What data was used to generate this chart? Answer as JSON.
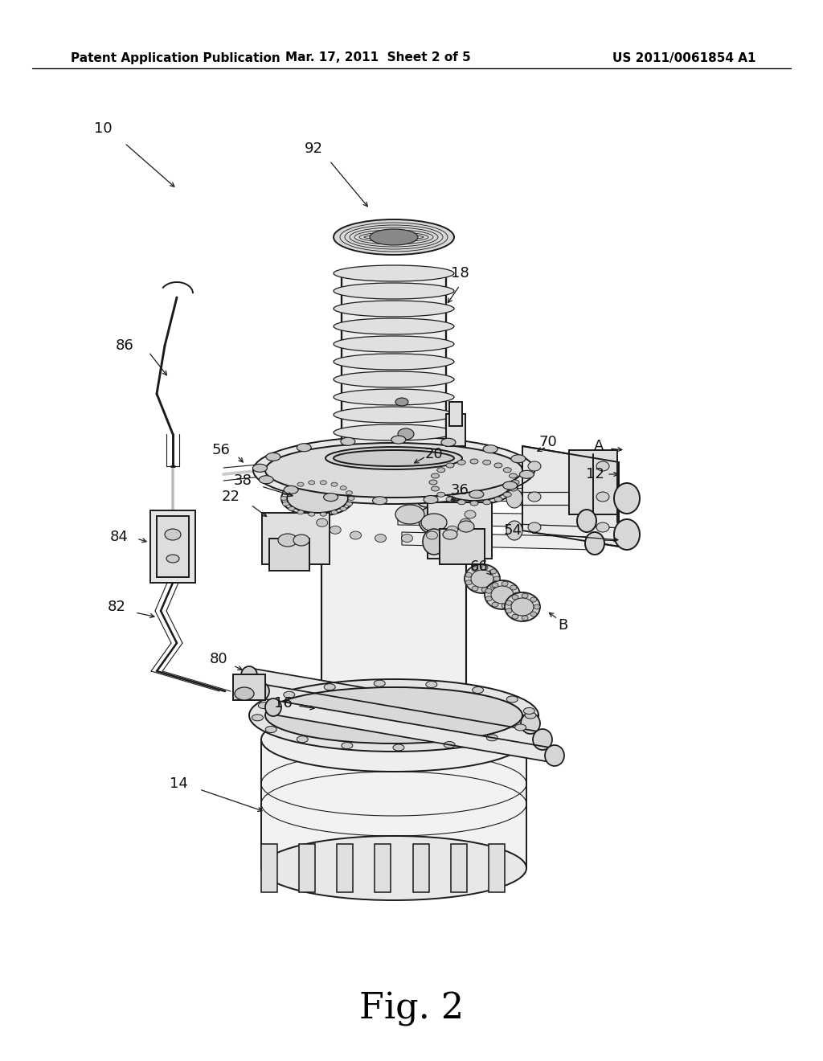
{
  "background_color": "#ffffff",
  "header_left": "Patent Application Publication",
  "header_center": "Mar. 17, 2011  Sheet 2 of 5",
  "header_right": "US 2011/0061854 A1",
  "figure_label": "Fig. 2",
  "header_fontsize": 11,
  "figure_label_fontsize": 32,
  "label_fontsize": 13,
  "line_color": "#1a1a1a",
  "light_gray": "#e8e8e8",
  "mid_gray": "#cccccc",
  "dark_gray": "#aaaaaa",
  "line_width": 1.4
}
